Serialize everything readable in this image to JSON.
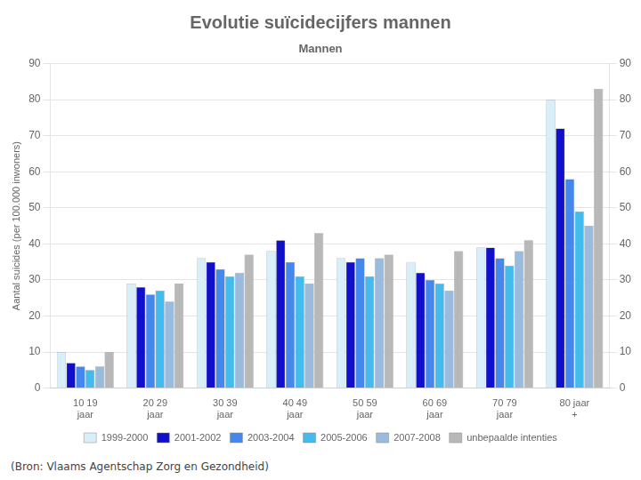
{
  "chart_data": {
    "type": "bar",
    "title": "Evolutie suïcidecijfers mannen",
    "subtitle": "Mannen",
    "annotations": [
      "(Bron: Vlaams Agentschap Zorg en Gezondheid)"
    ],
    "y_label": "Aantal suicides (per 100.000 inwoners)",
    "categories": [
      "10 19\njaar",
      "20 29\njaar",
      "30 39\njaar",
      "40 49\njaar",
      "50 59\njaar",
      "60 69\njaar",
      "70 79\njaar",
      "80 jaar\n+"
    ],
    "series": [
      {
        "name": "1999-2000",
        "color": "#d8eef8",
        "values": [
          10,
          29,
          36,
          38,
          36,
          35,
          39,
          80
        ]
      },
      {
        "name": "2001-2002",
        "color": "#1010cc",
        "values": [
          7,
          28,
          35,
          41,
          35,
          32,
          39,
          72
        ]
      },
      {
        "name": "2003-2004",
        "color": "#4488ee",
        "values": [
          6,
          26,
          33,
          35,
          36,
          30,
          36,
          58
        ]
      },
      {
        "name": "2005-2006",
        "color": "#44bbee",
        "values": [
          5,
          27,
          31,
          31,
          31,
          29,
          34,
          49
        ]
      },
      {
        "name": "2007-2008",
        "color": "#99bbdd",
        "values": [
          6,
          24,
          32,
          29,
          36,
          27,
          38,
          45
        ]
      },
      {
        "name": "unbepaalde intenties",
        "color": "#b8b8b8",
        "values": [
          10,
          29,
          37,
          43,
          37,
          38,
          41,
          83
        ]
      }
    ],
    "ylim": [
      0,
      90
    ],
    "yticks": [
      0,
      10,
      20,
      30,
      40,
      50,
      60,
      70,
      80,
      90
    ],
    "y2lim": [
      0,
      90
    ],
    "y2ticks": [
      0,
      10,
      20,
      30,
      40,
      50,
      60,
      70,
      80,
      90
    ],
    "grid": true,
    "legend": "bottom"
  }
}
